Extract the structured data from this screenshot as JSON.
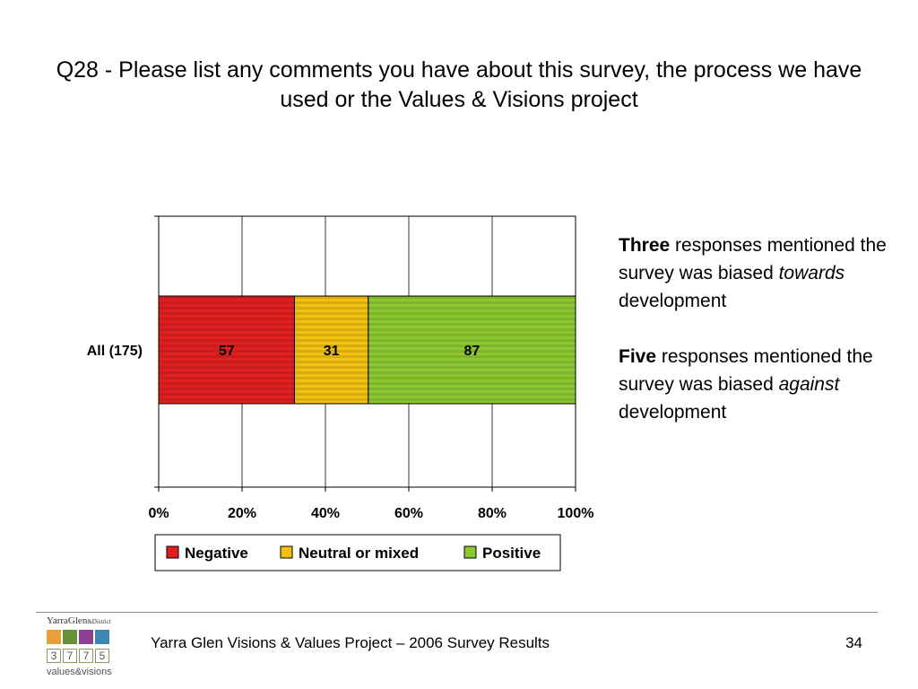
{
  "slide": {
    "title": "Q28 - Please list any comments you have about this survey, the process we have used or the Values & Visions project",
    "footer_text": "Yarra Glen Visions & Values Project – 2006 Survey Results",
    "page_number": "34"
  },
  "notes": {
    "note1": {
      "bold": "Three",
      "text_before": "responses mentioned the survey was biased",
      "italic": "towards",
      "text_after": "development"
    },
    "note2": {
      "bold": "Five",
      "text_before": "responses mentioned the survey was biased",
      "italic": "against",
      "text_after": "development"
    }
  },
  "logo": {
    "brand": "YarraGlen",
    "brand_suffix": "&District",
    "digits": [
      "3",
      "7",
      "7",
      "5"
    ],
    "tagline": "values&visions",
    "tile_colors": [
      "#e8a13a",
      "#6a8f3a",
      "#8a3f8f",
      "#3f86b5"
    ]
  },
  "chart_data": {
    "type": "bar",
    "orientation": "horizontal",
    "stacked": "percent",
    "categories": [
      "All (175)"
    ],
    "series": [
      {
        "name": "Negative",
        "values": [
          57
        ],
        "color": "#e02020"
      },
      {
        "name": "Neutral or mixed",
        "values": [
          31
        ],
        "color": "#f2c010"
      },
      {
        "name": "Positive",
        "values": [
          87
        ],
        "color": "#8cc830"
      }
    ],
    "x_ticks": [
      "0%",
      "20%",
      "40%",
      "60%",
      "80%",
      "100%"
    ],
    "xlim": [
      0,
      100
    ],
    "grid": true,
    "legend_position": "bottom"
  }
}
